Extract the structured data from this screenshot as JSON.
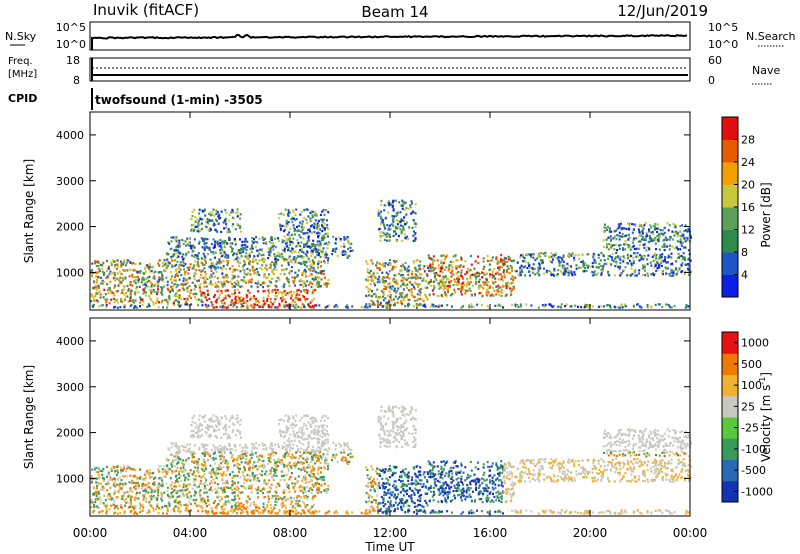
{
  "header": {
    "station": "Inuvik (fitACF)",
    "beam": "Beam 14",
    "date": "12/Jun/2019"
  },
  "noise_panel": {
    "left_label": "N.Sky",
    "left_ticks": [
      "10^5",
      "10^0"
    ],
    "right_label": "N.Search",
    "right_ticks": [
      "10^5",
      "10^0"
    ]
  },
  "freq_panel": {
    "left_label_1": "Freq.",
    "left_label_2": "[MHz]",
    "left_ticks": [
      "18",
      "8"
    ],
    "right_label": "Nave",
    "right_ticks": [
      "60",
      "0"
    ],
    "cpid_label": "CPID",
    "cpid_text": "twofsound (1-min) -3505"
  },
  "chart_data": [
    {
      "type": "heatmap",
      "title": "",
      "ylabel": "Slant Range [km]",
      "xlabel": "",
      "ylim": [
        180,
        4500
      ],
      "yticks": [
        "1000",
        "2000",
        "3000",
        "4000"
      ],
      "x_range_hours": [
        0,
        24
      ],
      "colorbar": {
        "label": "Power [dB]",
        "ticks": [
          "4",
          "8",
          "12",
          "16",
          "20",
          "24",
          "28"
        ],
        "colors": [
          "#0a1fe6",
          "#1e55c8",
          "#2f8a4c",
          "#5aa05a",
          "#c8c83c",
          "#f0a000",
          "#e85a00",
          "#e01010"
        ]
      },
      "scatter_regions": [
        {
          "t": [
            0.0,
            24.0
          ],
          "r": [
            250,
            330
          ],
          "v": "low"
        },
        {
          "t": [
            0.0,
            4.5
          ],
          "r": [
            350,
            700
          ],
          "v": "high"
        },
        {
          "t": [
            4.5,
            9.0
          ],
          "r": [
            250,
            650
          ],
          "v": "very_high"
        },
        {
          "t": [
            0.0,
            9.5
          ],
          "r": [
            700,
            1300
          ],
          "v": "mid"
        },
        {
          "t": [
            3.0,
            10.5
          ],
          "r": [
            1300,
            1800
          ],
          "v": "low"
        },
        {
          "t": [
            4.0,
            6.0
          ],
          "r": [
            1900,
            2400
          ],
          "v": "low"
        },
        {
          "t": [
            7.5,
            9.5
          ],
          "r": [
            1800,
            2400
          ],
          "v": "low"
        },
        {
          "t": [
            11.0,
            13.5
          ],
          "r": [
            300,
            1300
          ],
          "v": "mid"
        },
        {
          "t": [
            13.5,
            17.0
          ],
          "r": [
            500,
            1400
          ],
          "v": "high"
        },
        {
          "t": [
            11.5,
            13.0
          ],
          "r": [
            1700,
            2600
          ],
          "v": "low"
        },
        {
          "t": [
            17.0,
            24.0
          ],
          "r": [
            950,
            1450
          ],
          "v": "low"
        },
        {
          "t": [
            20.5,
            24.0
          ],
          "r": [
            1500,
            2100
          ],
          "v": "low"
        }
      ]
    },
    {
      "type": "heatmap",
      "title": "",
      "ylabel": "Slant Range [km]",
      "xlabel": "Time UT",
      "ylim": [
        180,
        4500
      ],
      "yticks": [
        "1000",
        "2000",
        "3000",
        "4000"
      ],
      "xticks": [
        "00:00",
        "04:00",
        "08:00",
        "12:00",
        "16:00",
        "20:00",
        "00:00"
      ],
      "x_range_hours": [
        0,
        24
      ],
      "colorbar": {
        "label": "Velocity [m s^-1]",
        "ticks": [
          "1000",
          "500",
          "100",
          "25",
          "-25",
          "-100",
          "-500",
          "-1000"
        ],
        "colors": [
          "#1432b4",
          "#2a6ab4",
          "#3a9a5a",
          "#5ac83a",
          "#c8c8c0",
          "#f0b030",
          "#f07a00",
          "#e81010"
        ]
      }
    }
  ],
  "colors": {
    "ground": "#c8c8c0",
    "axis": "#000000"
  }
}
